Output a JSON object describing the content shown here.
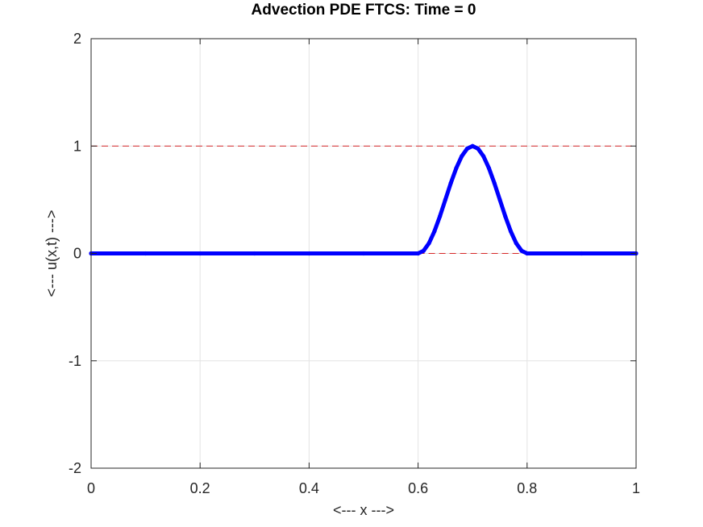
{
  "chart_data": {
    "type": "line",
    "title": "Advection PDE FTCS: Time = 0",
    "xlabel": "<--- x --->",
    "ylabel": "<--- u(x,t) --->",
    "xlim": [
      0,
      1
    ],
    "ylim": [
      -2,
      2
    ],
    "xticks": [
      "0",
      "0.2",
      "0.4",
      "0.6",
      "0.8",
      "1"
    ],
    "yticks": [
      "-2",
      "-1",
      "0",
      "1",
      "2"
    ],
    "grid": true,
    "reference_lines": [
      {
        "x_range": [
          0,
          1
        ],
        "y": 1,
        "style": "dashed",
        "color": "#d62728"
      },
      {
        "x_range": [
          0.6,
          0.8
        ],
        "y": 0,
        "style": "dashed",
        "color": "#d62728"
      }
    ],
    "series": [
      {
        "color": "#0000ff",
        "profile": "u(x,0) = sin^2(5*pi*(x - 0.6)) for 0.6 <= x <= 0.8, otherwise 0",
        "x": [
          0,
          0.1,
          0.2,
          0.3,
          0.4,
          0.5,
          0.6,
          0.61,
          0.62,
          0.63,
          0.64,
          0.65,
          0.66,
          0.67,
          0.68,
          0.69,
          0.7,
          0.71,
          0.72,
          0.73,
          0.74,
          0.75,
          0.76,
          0.77,
          0.78,
          0.79,
          0.8,
          0.9,
          1
        ],
        "values": [
          0,
          0,
          0,
          0,
          0,
          0,
          0,
          0.0245,
          0.0955,
          0.2061,
          0.3455,
          0.5,
          0.6545,
          0.7939,
          0.9045,
          0.9755,
          1,
          0.9755,
          0.9045,
          0.7939,
          0.6545,
          0.5,
          0.3455,
          0.2061,
          0.0955,
          0.0245,
          0,
          0,
          0
        ]
      }
    ]
  }
}
